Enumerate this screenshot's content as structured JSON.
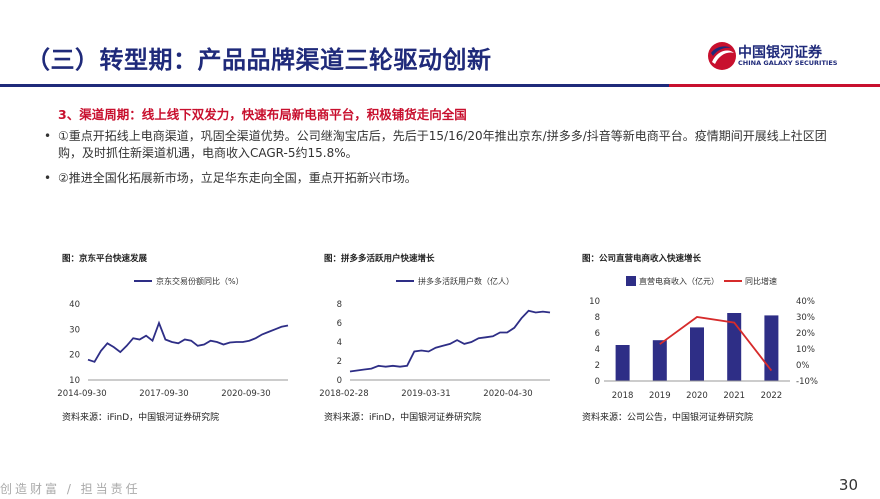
{
  "slide": {
    "title": "（三）转型期：产品品牌渠道三轮驱动创新",
    "logo": {
      "cn": "中国银河证券",
      "en": "CHINA GALAXY SECURITIES"
    },
    "section_heading": "3、渠道周期：线上线下双发力，快速布局新电商平台，积极铺货走向全国",
    "bullets": [
      "①重点开拓线上电商渠道，巩固全渠道优势。公司继淘宝店后，先后于15/16/20年推出京东/拼多多/抖音等新电商平台。疫情期间开展线上社区团购，及时抓住新渠道机遇，电商收入CAGR-5约15.8%。",
      "②推进全国化拓展新市场，立足华东走向全国，重点开拓新兴市场。"
    ],
    "bullet_symbol": "•",
    "footer_slogan": "创造财富 / 担当责任",
    "page_number": "30"
  },
  "charts": [
    {
      "title": "图：京东平台快速发展",
      "source": "资料来源：iFinD，中国银河证券研究院"
    },
    {
      "title": "图：拼多多活跃用户快速增长",
      "source": "资料来源：iFinD，中国银河证券研究院"
    },
    {
      "title": "图：公司直营电商收入快速增长",
      "source": "资料来源：公司公告，中国银河证券研究院"
    }
  ],
  "chart_data": [
    {
      "type": "line",
      "legend": [
        "京东交易份额同比（%）"
      ],
      "x_ticks": [
        "2014-09-30",
        "2017-09-30",
        "2020-09-30"
      ],
      "ylim": [
        10,
        40
      ],
      "y_ticks": [
        10,
        20,
        30,
        40
      ],
      "series": [
        {
          "name": "京东交易份额同比（%）",
          "color": "#2e2e86",
          "values": [
            18.0,
            17.2,
            21.5,
            24.5,
            23.0,
            21.0,
            23.5,
            26.5,
            26.0,
            27.5,
            25.5,
            32.5,
            26.0,
            25.0,
            24.5,
            26.0,
            25.5,
            23.5,
            24.0,
            25.5,
            25.0,
            24.0,
            24.8,
            25.0,
            25.0,
            25.5,
            26.5,
            28.0,
            29.0,
            30.0,
            31.0,
            31.5
          ]
        }
      ]
    },
    {
      "type": "line",
      "legend": [
        "拼多多活跃用户数（亿人）"
      ],
      "x_ticks": [
        "2018-02-28",
        "2019-03-31",
        "2020-04-30"
      ],
      "ylim": [
        0,
        8
      ],
      "y_ticks": [
        0,
        2,
        4,
        6,
        8
      ],
      "series": [
        {
          "name": "拼多多活跃用户数（亿人）",
          "color": "#2e2e86",
          "values": [
            0.9,
            1.0,
            1.1,
            1.2,
            1.5,
            1.4,
            1.5,
            1.4,
            1.5,
            3.0,
            3.1,
            3.0,
            3.4,
            3.6,
            3.8,
            4.2,
            3.8,
            4.0,
            4.4,
            4.5,
            4.6,
            5.0,
            5.0,
            5.5,
            6.5,
            7.3,
            7.1,
            7.2,
            7.1
          ]
        }
      ]
    },
    {
      "type": "bar",
      "legend": [
        "直营电商收入（亿元）",
        "同比增速"
      ],
      "categories": [
        "2018",
        "2019",
        "2020",
        "2021",
        "2022"
      ],
      "ylim": [
        0,
        10
      ],
      "y_ticks": [
        0,
        2,
        4,
        6,
        8,
        10
      ],
      "y2lim": [
        -10,
        40
      ],
      "y2_ticks": [
        "-10%",
        "0%",
        "10%",
        "20%",
        "30%",
        "40%"
      ],
      "series": [
        {
          "name": "直营电商收入（亿元）",
          "color": "#2e2e86",
          "values": [
            4.5,
            5.1,
            6.7,
            8.5,
            8.2
          ]
        },
        {
          "name": "同比增速",
          "color": "#d62b2b",
          "axis": "right",
          "values": [
            null,
            13.0,
            30.0,
            26.5,
            -3.5
          ]
        }
      ]
    }
  ]
}
